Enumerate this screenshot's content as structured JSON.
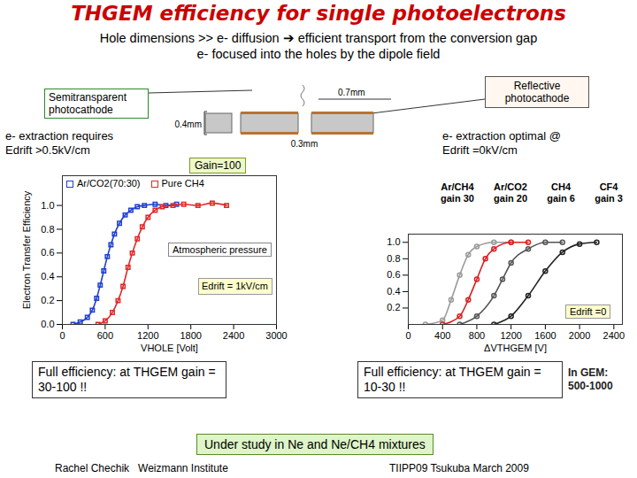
{
  "slide": {
    "title": "THGEM efficiency for single photoelectrons",
    "subtitle": [
      "Hole dimensions >> e- diffusion ➔ efficient transport from the conversion gap",
      "e- focused into the holes by the dipole field"
    ],
    "left_callout": {
      "box": "Semitransparent photocathode",
      "text": [
        "e- extraction requires",
        "Edrift >0.5kV/cm"
      ]
    },
    "right_callout": {
      "box": "Reflective photocathode",
      "text": [
        "e- extraction optimal @",
        "Edrift =0kV/cm"
      ]
    },
    "diagram": {
      "pitch": "0.7mm",
      "thickness": "0.4mm",
      "hole": "0.3mm"
    },
    "conclusions": [
      "Full efficiency: at THGEM gain = 30-100 !!",
      "Full efficiency: at THGEM gain = 10-30 !!"
    ],
    "gem_note": [
      "In GEM:",
      "500-1000"
    ],
    "study_note": "Under study in Ne and Ne/CH4 mixtures",
    "footer_left": "Rachel Chechik   Weizmann Institute",
    "footer_right": "TIIPP09 Tsukuba March 2009"
  },
  "chart_data": [
    {
      "type": "line",
      "marker": "square",
      "xlabel": "VHOLE [Volt]",
      "ylabel": "Electron Transfer Efficiency",
      "xlim": [
        0,
        3000
      ],
      "xticks": [
        0,
        600,
        1200,
        1800,
        2400,
        3000
      ],
      "ylim": [
        0,
        1.25
      ],
      "yticks": [
        {
          "value": 0,
          "label": "0.0"
        },
        0.2,
        0.4,
        0.6,
        0.8,
        {
          "value": 1,
          "label": "1.0"
        }
      ],
      "grid": false,
      "legend": "top-left",
      "annotations": [
        "Gain=100",
        "Atmospheric pressure",
        "Edrift = 1kV/cm"
      ],
      "series": [
        {
          "name": "Ar/CO2(70:30)",
          "color": "#1f3fd0",
          "x": [
            150,
            250,
            350,
            420,
            480,
            530,
            580,
            630,
            680,
            730,
            800,
            880,
            960,
            1050,
            1150,
            1300,
            1450,
            1600
          ],
          "values": [
            0.0,
            0.02,
            0.06,
            0.12,
            0.22,
            0.33,
            0.45,
            0.57,
            0.67,
            0.76,
            0.85,
            0.92,
            0.96,
            0.99,
            1.0,
            1.01,
            1.0,
            1.01
          ]
        },
        {
          "name": "Pure CH4",
          "color": "#e02828",
          "x": [
            500,
            600,
            700,
            780,
            850,
            920,
            980,
            1050,
            1120,
            1200,
            1300,
            1400,
            1550,
            1700,
            1900,
            2100,
            2300
          ],
          "values": [
            0.0,
            0.03,
            0.1,
            0.2,
            0.32,
            0.48,
            0.6,
            0.72,
            0.82,
            0.9,
            0.96,
            0.99,
            1.0,
            1.01,
            1.0,
            1.02,
            1.0
          ]
        }
      ]
    },
    {
      "type": "line",
      "marker": "circle",
      "xlabel": "ΔVTHGEM [V]",
      "xlim": [
        0,
        2500
      ],
      "xticks": [
        0,
        400,
        800,
        1200,
        1600,
        2000,
        2400
      ],
      "ylim": [
        0,
        1.1
      ],
      "yticks": [
        0.2,
        0.4,
        0.6,
        0.8,
        {
          "value": 1,
          "label": "1.0"
        }
      ],
      "grid": false,
      "legend": "top",
      "annotations": [
        "Edrift =0"
      ],
      "series": [
        {
          "name": "Ar/CH4",
          "label": "gain 30",
          "color": "#9a9a9a",
          "x": [
            200,
            400,
            500,
            600,
            700,
            800,
            1000,
            1200
          ],
          "values": [
            0.0,
            0.05,
            0.3,
            0.6,
            0.85,
            0.95,
            1.0,
            1.0
          ]
        },
        {
          "name": "Ar/CO2",
          "label": "gain 20",
          "color": "#d62020",
          "x": [
            400,
            600,
            700,
            800,
            900,
            1000,
            1200,
            1400
          ],
          "values": [
            0.0,
            0.1,
            0.3,
            0.55,
            0.8,
            0.92,
            1.0,
            1.0
          ]
        },
        {
          "name": "CH4",
          "label": "gain 6",
          "color": "#555555",
          "x": [
            600,
            800,
            1000,
            1100,
            1200,
            1400,
            1600,
            1800
          ],
          "values": [
            0.0,
            0.1,
            0.35,
            0.55,
            0.75,
            0.92,
            1.0,
            1.0
          ]
        },
        {
          "name": "CF4",
          "label": "gain 3",
          "color": "#222222",
          "x": [
            1000,
            1200,
            1400,
            1600,
            1800,
            2000,
            2200
          ],
          "values": [
            0.0,
            0.1,
            0.35,
            0.65,
            0.88,
            0.98,
            1.0
          ]
        }
      ]
    }
  ]
}
